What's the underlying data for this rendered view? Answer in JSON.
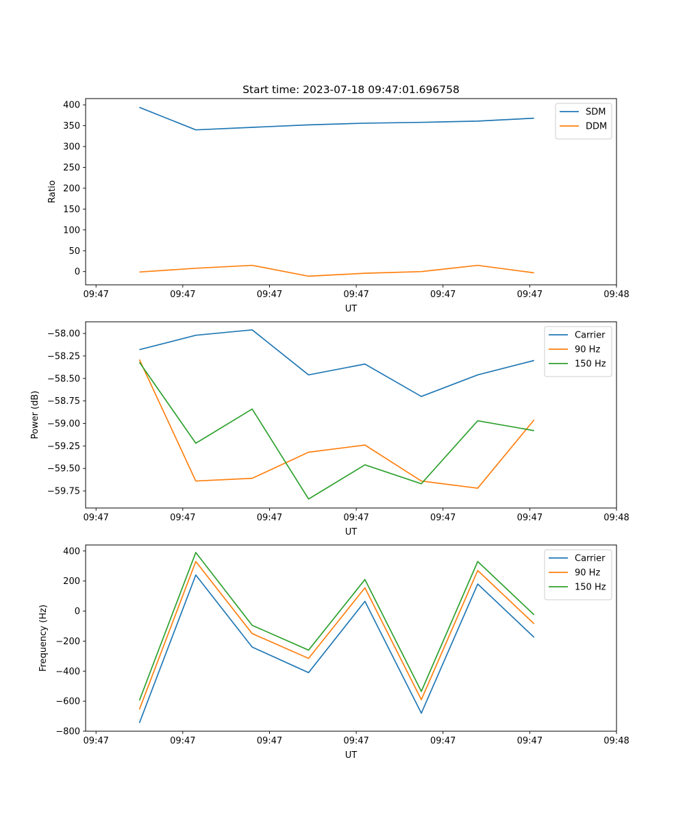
{
  "chart_data": [
    {
      "type": "line",
      "title": "Start time: 2023-07-18 09:47:01.696758",
      "xlabel": "UT",
      "ylabel": "Ratio",
      "x_tick_labels": [
        "09:47",
        "09:47",
        "09:47",
        "09:47",
        "09:47",
        "09:47",
        "09:48"
      ],
      "x_ticks": [
        0,
        1,
        2,
        3,
        4,
        5,
        6
      ],
      "xlim": [
        -0.12,
        6.0
      ],
      "x": [
        0.5,
        1.15,
        1.8,
        2.45,
        3.1,
        3.75,
        4.4,
        5.05
      ],
      "ylim": [
        -31.7,
        415
      ],
      "y_ticks": [
        0,
        50,
        100,
        150,
        200,
        250,
        300,
        350,
        400
      ],
      "legend": "top-right",
      "series": [
        {
          "name": "SDM",
          "color": "#1f77b4",
          "values": [
            394,
            340,
            346,
            352,
            356,
            358,
            361,
            368
          ]
        },
        {
          "name": "DDM",
          "color": "#ff7f0e",
          "values": [
            -1,
            8,
            15,
            -11,
            -4,
            0,
            15,
            -3
          ]
        }
      ]
    },
    {
      "type": "line",
      "xlabel": "UT",
      "ylabel": "Power (dB)",
      "x_tick_labels": [
        "09:47",
        "09:47",
        "09:47",
        "09:47",
        "09:47",
        "09:47",
        "09:48"
      ],
      "x_ticks": [
        0,
        1,
        2,
        3,
        4,
        5,
        6
      ],
      "xlim": [
        -0.12,
        6.0
      ],
      "x": [
        0.5,
        1.15,
        1.8,
        2.45,
        3.1,
        3.75,
        4.4,
        5.05
      ],
      "ylim": [
        -59.94,
        -57.87
      ],
      "y_ticks": [
        -59.75,
        -59.5,
        -59.25,
        -59.0,
        -58.75,
        -58.5,
        -58.25,
        -58.0
      ],
      "y_tick_labels": [
        "−59.75",
        "−59.50",
        "−59.25",
        "−59.00",
        "−58.75",
        "−58.50",
        "−58.25",
        "−58.00"
      ],
      "legend": "top-right",
      "series": [
        {
          "name": "Carrier",
          "color": "#1f77b4",
          "values": [
            -58.18,
            -58.02,
            -57.96,
            -58.46,
            -58.34,
            -58.7,
            -58.46,
            -58.3
          ]
        },
        {
          "name": "90 Hz",
          "color": "#ff7f0e",
          "values": [
            -58.29,
            -59.64,
            -59.61,
            -59.32,
            -59.24,
            -59.64,
            -59.72,
            -58.96
          ]
        },
        {
          "name": "150 Hz",
          "color": "#2ca02c",
          "values": [
            -58.32,
            -59.22,
            -58.84,
            -59.84,
            -59.46,
            -59.67,
            -58.97,
            -59.08
          ]
        }
      ]
    },
    {
      "type": "line",
      "xlabel": "UT",
      "ylabel": "Frequency (Hz)",
      "x_tick_labels": [
        "09:47",
        "09:47",
        "09:47",
        "09:47",
        "09:47",
        "09:47",
        "09:48"
      ],
      "x_ticks": [
        0,
        1,
        2,
        3,
        4,
        5,
        6
      ],
      "xlim": [
        -0.12,
        6.0
      ],
      "x": [
        0.5,
        1.15,
        1.8,
        2.45,
        3.1,
        3.75,
        4.4,
        5.05
      ],
      "ylim": [
        -800,
        440
      ],
      "y_ticks": [
        -800,
        -600,
        -400,
        -200,
        0,
        200,
        400
      ],
      "y_tick_labels": [
        "−800",
        "−600",
        "−400",
        "−200",
        "0",
        "200",
        "400"
      ],
      "legend": "top-right",
      "series": [
        {
          "name": "Carrier",
          "color": "#1f77b4",
          "values": [
            -745,
            240,
            -240,
            -410,
            65,
            -680,
            180,
            -175
          ]
        },
        {
          "name": "90 Hz",
          "color": "#ff7f0e",
          "values": [
            -655,
            330,
            -150,
            -315,
            155,
            -590,
            270,
            -85
          ]
        },
        {
          "name": "150 Hz",
          "color": "#2ca02c",
          "values": [
            -595,
            390,
            -95,
            -260,
            210,
            -535,
            330,
            -25
          ]
        }
      ]
    }
  ]
}
